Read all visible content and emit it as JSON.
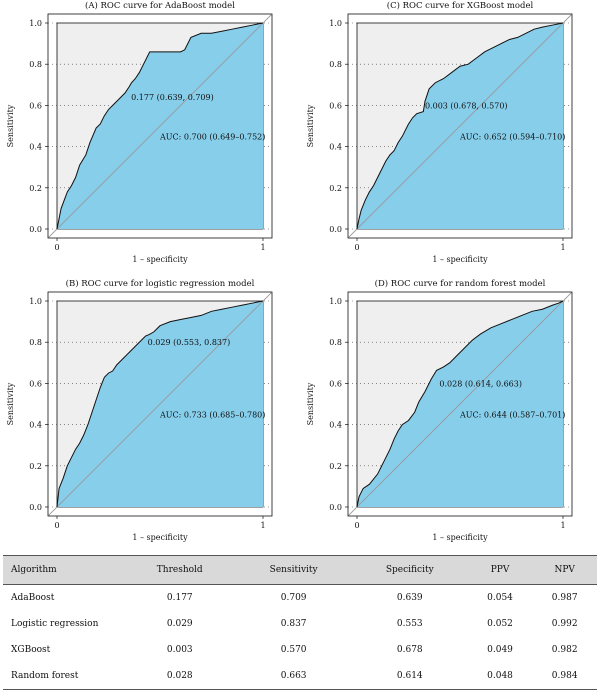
{
  "chart_data": [
    {
      "type": "line",
      "title": "(A) ROC curve for AdaBoost model",
      "xlabel": "1 – specificity",
      "ylabel": "Sensitivity",
      "xlim": [
        0,
        1
      ],
      "ylim": [
        0,
        1
      ],
      "x_ticks": [
        "0",
        "1"
      ],
      "y_ticks": [
        "0.0",
        "0.2",
        "0.4",
        "0.6",
        "0.8",
        "1.0"
      ],
      "grid": true,
      "series": [
        {
          "x": [
            0,
            0.02,
            0.05,
            0.07,
            0.09,
            0.11,
            0.14,
            0.16,
            0.19,
            0.21,
            0.23,
            0.25,
            0.28,
            0.3,
            0.33,
            0.35,
            0.361,
            0.38,
            0.4,
            0.42,
            0.45,
            0.48,
            0.5,
            0.53,
            0.55,
            0.57,
            0.6,
            0.62,
            0.65,
            0.7,
            0.75,
            0.8,
            0.85,
            0.9,
            0.95,
            1.0
          ],
          "y": [
            0,
            0.1,
            0.18,
            0.21,
            0.25,
            0.31,
            0.36,
            0.42,
            0.49,
            0.51,
            0.55,
            0.58,
            0.61,
            0.63,
            0.66,
            0.69,
            0.709,
            0.73,
            0.76,
            0.8,
            0.86,
            0.86,
            0.86,
            0.86,
            0.86,
            0.86,
            0.86,
            0.87,
            0.93,
            0.95,
            0.95,
            0.96,
            0.97,
            0.98,
            0.99,
            1.0
          ]
        }
      ],
      "annotations": [
        {
          "text": "0.177 (0.639, 0.709)",
          "x": 0.36,
          "y": 0.64
        },
        {
          "text": "AUC: 0.700 (0.649–0.752)",
          "x": 0.5,
          "y": 0.45
        }
      ]
    },
    {
      "type": "line",
      "title": "(C) ROC curve for XGBoost model",
      "xlabel": "1 – specificity",
      "ylabel": "Sensitivity",
      "xlim": [
        0,
        1
      ],
      "ylim": [
        0,
        1
      ],
      "x_ticks": [
        "0",
        "1"
      ],
      "y_ticks": [
        "0.0",
        "0.2",
        "0.4",
        "0.6",
        "0.8",
        "1.0"
      ],
      "grid": true,
      "series": [
        {
          "x": [
            0,
            0.01,
            0.02,
            0.04,
            0.06,
            0.08,
            0.1,
            0.12,
            0.14,
            0.16,
            0.18,
            0.2,
            0.22,
            0.25,
            0.27,
            0.29,
            0.322,
            0.33,
            0.35,
            0.38,
            0.42,
            0.46,
            0.5,
            0.54,
            0.58,
            0.62,
            0.66,
            0.7,
            0.74,
            0.78,
            0.82,
            0.86,
            0.9,
            0.95,
            1.0
          ],
          "y": [
            0,
            0.05,
            0.09,
            0.14,
            0.18,
            0.21,
            0.25,
            0.29,
            0.33,
            0.36,
            0.38,
            0.42,
            0.45,
            0.51,
            0.54,
            0.56,
            0.57,
            0.62,
            0.68,
            0.71,
            0.73,
            0.76,
            0.79,
            0.8,
            0.83,
            0.86,
            0.88,
            0.9,
            0.92,
            0.93,
            0.95,
            0.97,
            0.98,
            0.99,
            1.0
          ]
        }
      ],
      "annotations": [
        {
          "text": "0.003 (0.678, 0.570)",
          "x": 0.33,
          "y": 0.6
        },
        {
          "text": "AUC: 0.652 (0.594–0.710)",
          "x": 0.5,
          "y": 0.45
        }
      ]
    },
    {
      "type": "line",
      "title": "(B) ROC curve for logistic regression model",
      "xlabel": "1 – specificity",
      "ylabel": "Sensitivity",
      "xlim": [
        0,
        1
      ],
      "ylim": [
        0,
        1
      ],
      "x_ticks": [
        "0",
        "1"
      ],
      "y_ticks": [
        "0.0",
        "0.2",
        "0.4",
        "0.6",
        "0.8",
        "1.0"
      ],
      "grid": true,
      "series": [
        {
          "x": [
            0,
            0.01,
            0.03,
            0.05,
            0.07,
            0.09,
            0.11,
            0.13,
            0.15,
            0.17,
            0.19,
            0.21,
            0.23,
            0.25,
            0.27,
            0.29,
            0.31,
            0.33,
            0.35,
            0.37,
            0.39,
            0.41,
            0.43,
            0.447,
            0.47,
            0.5,
            0.55,
            0.6,
            0.65,
            0.7,
            0.75,
            0.8,
            0.85,
            0.9,
            0.95,
            1.0
          ],
          "y": [
            0,
            0.09,
            0.14,
            0.2,
            0.24,
            0.28,
            0.31,
            0.35,
            0.4,
            0.46,
            0.52,
            0.58,
            0.63,
            0.65,
            0.66,
            0.69,
            0.71,
            0.73,
            0.75,
            0.77,
            0.79,
            0.81,
            0.83,
            0.837,
            0.85,
            0.88,
            0.9,
            0.91,
            0.92,
            0.93,
            0.95,
            0.96,
            0.97,
            0.98,
            0.99,
            1.0
          ]
        }
      ],
      "annotations": [
        {
          "text": "0.029 (0.553, 0.837)",
          "x": 0.44,
          "y": 0.8
        },
        {
          "text": "AUC: 0.733 (0.685–0.780)",
          "x": 0.5,
          "y": 0.45
        }
      ]
    },
    {
      "type": "line",
      "title": "(D) ROC curve for random forest model",
      "xlabel": "1 – specificity",
      "ylabel": "Sensitivity",
      "xlim": [
        0,
        1
      ],
      "ylim": [
        0,
        1
      ],
      "x_ticks": [
        "0",
        "1"
      ],
      "y_ticks": [
        "0.0",
        "0.2",
        "0.4",
        "0.6",
        "0.8",
        "1.0"
      ],
      "grid": true,
      "series": [
        {
          "x": [
            0,
            0.01,
            0.03,
            0.06,
            0.1,
            0.13,
            0.16,
            0.18,
            0.2,
            0.22,
            0.25,
            0.28,
            0.3,
            0.33,
            0.36,
            0.386,
            0.42,
            0.45,
            0.48,
            0.52,
            0.56,
            0.6,
            0.65,
            0.7,
            0.75,
            0.8,
            0.85,
            0.9,
            0.95,
            0.98,
            1.0
          ],
          "y": [
            0,
            0.05,
            0.09,
            0.11,
            0.16,
            0.22,
            0.28,
            0.33,
            0.37,
            0.4,
            0.42,
            0.46,
            0.51,
            0.56,
            0.62,
            0.663,
            0.68,
            0.7,
            0.73,
            0.77,
            0.81,
            0.84,
            0.87,
            0.89,
            0.91,
            0.93,
            0.95,
            0.96,
            0.98,
            0.99,
            1.0
          ]
        }
      ],
      "annotations": [
        {
          "text": "0.028 (0.614, 0.663)",
          "x": 0.4,
          "y": 0.6
        },
        {
          "text": "AUC: 0.644 (0.587–0.701)",
          "x": 0.5,
          "y": 0.45
        }
      ]
    }
  ],
  "colors": {
    "auc_fill": "#87ceeb",
    "background_fill": "#efefef",
    "reference_line": "#999999",
    "curve": "#111111",
    "grid": "#444444"
  },
  "table": {
    "headers": [
      "Algorithm",
      "Threshold",
      "Sensitivity",
      "Specificity",
      "PPV",
      "NPV"
    ],
    "rows": [
      [
        "AdaBoost",
        "0.177",
        "0.709",
        "0.639",
        "0.054",
        "0.987"
      ],
      [
        "Logistic regression",
        "0.029",
        "0.837",
        "0.553",
        "0.052",
        "0.992"
      ],
      [
        "XGBoost",
        "0.003",
        "0.570",
        "0.678",
        "0.049",
        "0.982"
      ],
      [
        "Random forest",
        "0.028",
        "0.663",
        "0.614",
        "0.048",
        "0.984"
      ]
    ]
  }
}
